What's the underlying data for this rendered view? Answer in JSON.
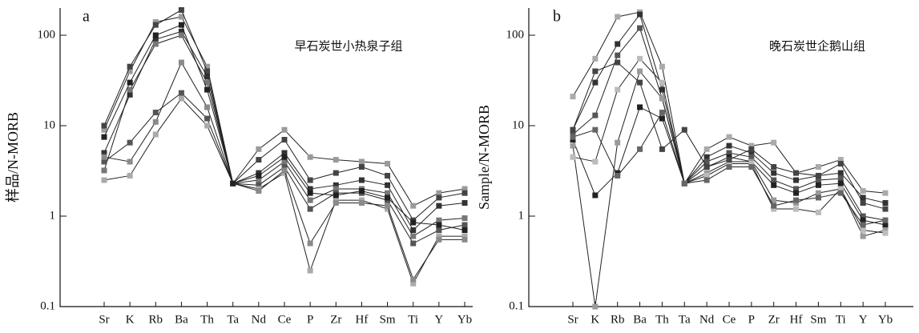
{
  "chart_data": [
    {
      "type": "line",
      "label": "a",
      "annotation": "早石炭世小热泉子组",
      "ylabel": "样品/N-MORB",
      "yscale": "log",
      "categories": [
        "Sr",
        "K",
        "Rb",
        "Ba",
        "Th",
        "Ta",
        "Nd",
        "Ce",
        "P",
        "Zr",
        "Hf",
        "Sm",
        "Ti",
        "Y",
        "Yb"
      ],
      "ylim": [
        0.1,
        200
      ],
      "yticks": [
        0.1,
        1,
        10,
        100
      ],
      "series": [
        {
          "color": "#9a9a9a",
          "values": [
            9,
            40,
            140,
            160,
            45,
            2.3,
            5.5,
            9,
            4.5,
            4.2,
            4,
            3.8,
            1.3,
            1.8,
            2
          ]
        },
        {
          "color": "#444444",
          "values": [
            10,
            45,
            130,
            190,
            40,
            2.3,
            4.2,
            7,
            2.5,
            3,
            3.5,
            2.8,
            0.9,
            1.6,
            1.8
          ]
        },
        {
          "color": "#333333",
          "values": [
            5,
            22,
            90,
            110,
            35,
            2.3,
            3,
            5,
            2,
            2.2,
            2.5,
            2.2,
            0.7,
            1.3,
            1.4
          ]
        },
        {
          "color": "#777777",
          "values": [
            3.2,
            25,
            80,
            100,
            30,
            2.3,
            2.5,
            4,
            1.5,
            2,
            2,
            1.8,
            0.6,
            0.9,
            0.95
          ]
        },
        {
          "color": "#555555",
          "values": [
            4,
            6.5,
            14,
            23,
            12,
            2.3,
            2.2,
            3.5,
            1.2,
            1.8,
            1.8,
            1.5,
            0.5,
            0.7,
            0.8
          ]
        },
        {
          "color": "#aaaaaa",
          "values": [
            2.5,
            2.8,
            8,
            20,
            10,
            2.3,
            2,
            3,
            0.25,
            1.5,
            1.5,
            1.2,
            0.18,
            0.6,
            0.6
          ]
        },
        {
          "color": "#8a8a8a",
          "values": [
            4.5,
            4,
            11,
            50,
            16,
            2.3,
            1.9,
            3.2,
            0.5,
            1.4,
            1.4,
            1.3,
            0.2,
            0.55,
            0.55
          ]
        },
        {
          "color": "#222222",
          "values": [
            7.5,
            30,
            100,
            130,
            25,
            2.3,
            2.8,
            4.5,
            1.8,
            1.7,
            1.9,
            1.6,
            0.85,
            0.8,
            0.7
          ]
        }
      ]
    },
    {
      "type": "line",
      "label": "b",
      "annotation": "晚石炭世企鹅山组",
      "ylabel": "Sample/N-MORB",
      "yscale": "log",
      "categories": [
        "Sr",
        "K",
        "Rb",
        "Ba",
        "Th",
        "Ta",
        "Nd",
        "Ce",
        "P",
        "Zr",
        "Hf",
        "Sm",
        "Ti",
        "Y",
        "Yb"
      ],
      "ylim": [
        0.1,
        200
      ],
      "yticks": [
        0.1,
        1,
        10,
        100
      ],
      "series": [
        {
          "color": "#aaaaaa",
          "values": [
            21,
            55,
            160,
            180,
            45,
            2.3,
            5.5,
            7.5,
            6,
            6.5,
            3,
            3.5,
            4.2,
            1.9,
            1.8
          ]
        },
        {
          "color": "#333333",
          "values": [
            9,
            30,
            80,
            170,
            25,
            2.3,
            4.5,
            6,
            5,
            3,
            2.5,
            2.8,
            3,
            1.6,
            1.4
          ]
        },
        {
          "color": "#555555",
          "values": [
            8,
            13,
            60,
            120,
            20,
            2.3,
            4,
            5,
            4.5,
            2.5,
            2,
            2.5,
            2.6,
            1,
            0.9
          ]
        },
        {
          "color": "#222222",
          "values": [
            7,
            1.7,
            3,
            16,
            12,
            2.3,
            3.5,
            4.5,
            4,
            2.2,
            1.8,
            2.2,
            2.3,
            0.9,
            0.8
          ]
        },
        {
          "color": "#9a9a9a",
          "values": [
            6,
            0.1,
            6.5,
            40,
            20,
            2.3,
            3,
            4,
            4,
            1.5,
            1.4,
            1.8,
            2,
            0.6,
            0.7
          ]
        },
        {
          "color": "#bbbbbb",
          "values": [
            4.5,
            4,
            25,
            55,
            30,
            2.3,
            2.8,
            3.8,
            3.8,
            1.2,
            1.2,
            1.1,
            2,
            0.7,
            0.65
          ]
        },
        {
          "color": "#666666",
          "values": [
            7.5,
            9,
            2.8,
            5.5,
            14,
            2.3,
            2.5,
            3.5,
            3.5,
            1.3,
            1.5,
            1.6,
            1.8,
            0.8,
            0.9
          ]
        },
        {
          "color": "#444444",
          "values": [
            9,
            40,
            50,
            30,
            5.5,
            9,
            3.5,
            4.2,
            5.5,
            3.5,
            3,
            2.8,
            3.8,
            1.4,
            1.2
          ]
        }
      ]
    }
  ]
}
